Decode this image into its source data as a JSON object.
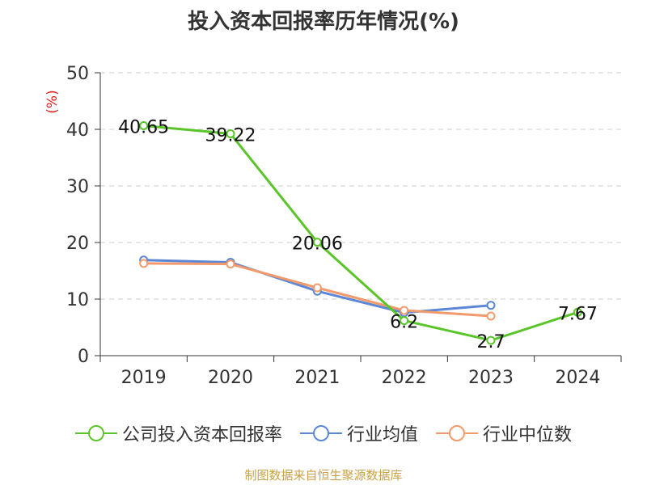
{
  "chart_data": {
    "type": "line",
    "title": "投入资本回报率历年情况(%)",
    "ylabel": "(%)",
    "xlabel": "",
    "ylim": [
      0,
      50
    ],
    "yticks": [
      0,
      10,
      20,
      30,
      40,
      50
    ],
    "categories": [
      "2019",
      "2020",
      "2021",
      "2022",
      "2023",
      "2024"
    ],
    "series": [
      {
        "name": "公司投入资本回报率",
        "color": "#5ac528",
        "values": [
          40.65,
          39.22,
          20.06,
          6.2,
          2.7,
          7.67
        ],
        "labels": [
          "40.65",
          "39.22",
          "20.06",
          "6.2",
          "2.7",
          "7.67"
        ]
      },
      {
        "name": "行业均值",
        "color": "#5b87d6",
        "values": [
          16.9,
          16.5,
          11.4,
          7.6,
          8.9,
          null
        ]
      },
      {
        "name": "行业中位数",
        "color": "#f29a6b",
        "values": [
          16.3,
          16.2,
          12.0,
          8.0,
          7.0,
          null
        ]
      }
    ],
    "grid": true,
    "legend_position": "bottom"
  },
  "source": "制图数据来自恒生聚源数据库"
}
